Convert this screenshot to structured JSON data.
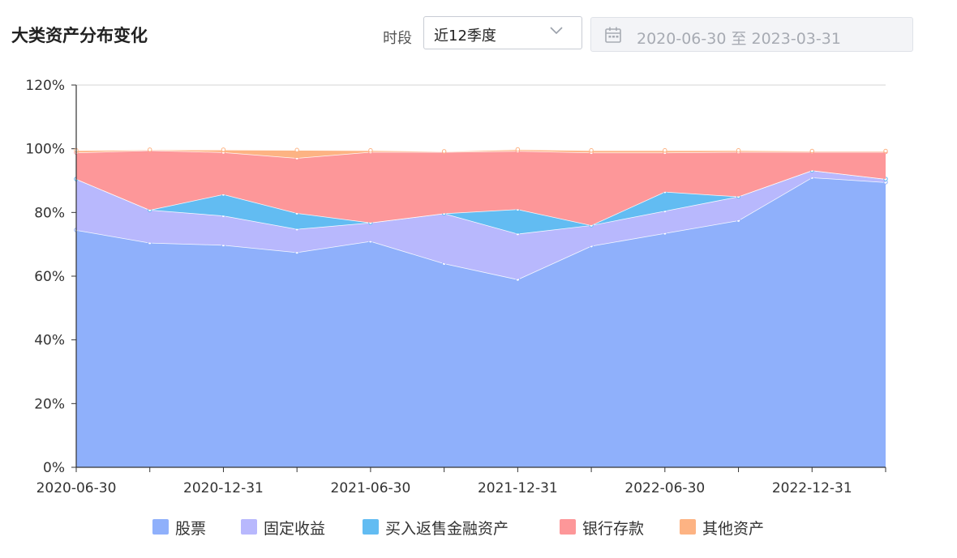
{
  "title": "大类资产分布变化",
  "filter": {
    "period_label": "时段",
    "period_value": "近12季度",
    "date_range": "2020-06-30 至 2023-03-31"
  },
  "icons": {
    "dropdown": "chevron-down-icon",
    "calendar": "calendar-icon"
  },
  "chart_data": {
    "type": "area",
    "stacked": true,
    "x_axis_type": "date",
    "x": [
      "2020-06-30",
      "2020-09-30",
      "2020-12-31",
      "2021-03-31",
      "2021-06-30",
      "2021-09-30",
      "2021-12-31",
      "2022-03-31",
      "2022-06-30",
      "2022-09-30",
      "2022-12-31",
      "2023-03-31"
    ],
    "x_tick_labels": [
      "2020-06-30",
      "2020-12-31",
      "2021-06-30",
      "2021-12-31",
      "2022-06-30",
      "2022-12-31"
    ],
    "y_tick_labels": [
      "0%",
      "20%",
      "40%",
      "60%",
      "80%",
      "100%",
      "120%"
    ],
    "ylim": [
      0,
      120
    ],
    "y_unit": "%",
    "grid": false,
    "legend_position": "bottom",
    "series": [
      {
        "name": "股票",
        "color": "#8fb0fb",
        "values": [
          74.5,
          70.5,
          69.8,
          67.5,
          71,
          64,
          59,
          69.5,
          73.5,
          77.5,
          91,
          89.5
        ]
      },
      {
        "name": "固定收益",
        "color": "#b8b8fd",
        "values": [
          16,
          10.3,
          9.2,
          7.3,
          5.8,
          15.7,
          14.3,
          6.5,
          7,
          7.5,
          2.2,
          1
        ]
      },
      {
        "name": "买入返售金融资产",
        "color": "#62bcf2",
        "values": [
          0,
          0,
          6.7,
          5,
          0,
          0,
          7.7,
          0,
          6,
          0,
          0,
          0
        ]
      },
      {
        "name": "银行存款",
        "color": "#fd9799",
        "values": [
          8.3,
          18.7,
          13.2,
          17.3,
          22.2,
          19.3,
          18.3,
          22.8,
          12.3,
          14,
          5.8,
          8.5
        ]
      },
      {
        "name": "其他资产",
        "color": "#fdb383",
        "values": [
          0.7,
          0.2,
          0.8,
          2.5,
          0.5,
          0.2,
          0.5,
          0.7,
          0.7,
          0.5,
          0.3,
          0.3
        ]
      }
    ]
  }
}
